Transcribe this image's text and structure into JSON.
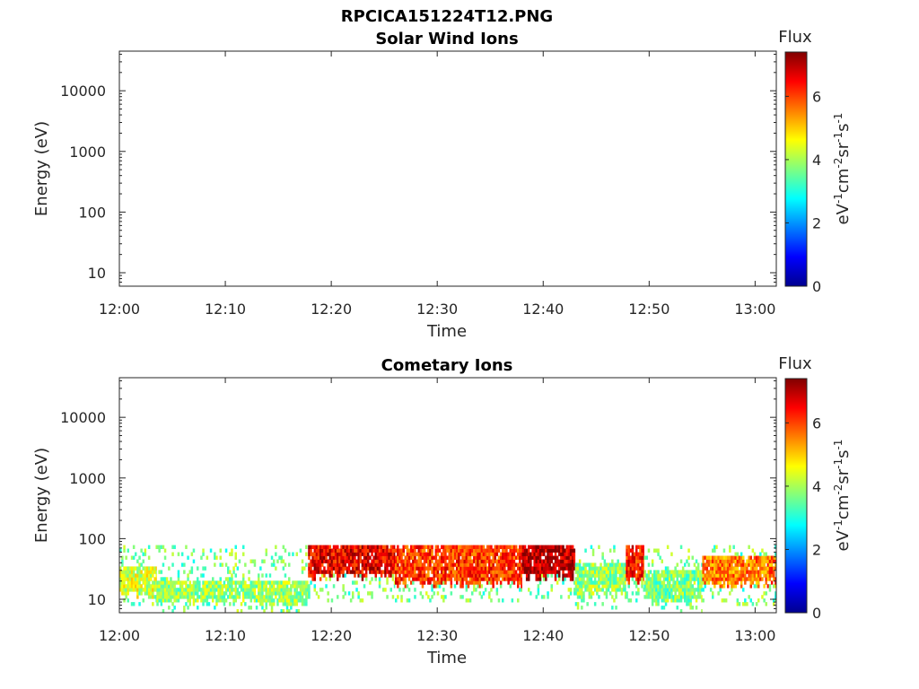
{
  "figure": {
    "title": "RPCICA151224T12.PNG"
  },
  "chart_data": [
    {
      "type": "heatmap",
      "title": "Solar Wind Ions",
      "xlabel": "Time",
      "ylabel": "Energy (eV)",
      "x_ticks": [
        "12:00",
        "12:10",
        "12:20",
        "12:30",
        "12:40",
        "12:50",
        "13:00"
      ],
      "x_range_minutes": [
        0,
        62
      ],
      "y_scale": "log",
      "y_ticks": [
        "10",
        "100",
        "1000",
        "10000"
      ],
      "y_range": [
        6,
        45000
      ],
      "colorbar": {
        "title": "Flux",
        "label": "eV-1cm-2sr-1s-1",
        "ticks": [
          "0",
          "2",
          "4",
          "6"
        ],
        "range": [
          0,
          7.4
        ],
        "colormap": "jet"
      },
      "blocks": []
    },
    {
      "type": "heatmap",
      "title": "Cometary Ions",
      "xlabel": "Time",
      "ylabel": "Energy (eV)",
      "x_ticks": [
        "12:00",
        "12:10",
        "12:20",
        "12:30",
        "12:40",
        "12:50",
        "13:00"
      ],
      "x_range_minutes": [
        0,
        62
      ],
      "y_scale": "log",
      "y_ticks": [
        "10",
        "100",
        "1000",
        "10000"
      ],
      "y_range": [
        6,
        45000
      ],
      "colorbar": {
        "title": "Flux",
        "label": "eV-1cm-2sr-1s-1",
        "ticks": [
          "0",
          "2",
          "4",
          "6"
        ],
        "range": [
          0,
          7.4
        ],
        "colormap": "jet"
      },
      "blocks": [
        {
          "t0": 0.0,
          "t1": 3.5,
          "emin": 8,
          "ebot": 12,
          "etop": 35,
          "emax": 80,
          "flux": 4.3
        },
        {
          "t0": 3.5,
          "t1": 17.8,
          "emin": 6,
          "ebot": 9,
          "etop": 20,
          "emax": 80,
          "flux": 3.9
        },
        {
          "t0": 17.8,
          "t1": 26.0,
          "emin": 9,
          "ebot": 25,
          "etop": 80,
          "emax": 80,
          "flux": 6.6
        },
        {
          "t0": 26.0,
          "t1": 38.0,
          "emin": 9,
          "ebot": 18,
          "etop": 80,
          "emax": 80,
          "flux": 6.1
        },
        {
          "t0": 38.0,
          "t1": 43.0,
          "emin": 10,
          "ebot": 25,
          "etop": 80,
          "emax": 80,
          "flux": 7.0
        },
        {
          "t0": 43.0,
          "t1": 47.8,
          "emin": 7,
          "ebot": 12,
          "etop": 40,
          "emax": 80,
          "flux": 3.9
        },
        {
          "t0": 47.8,
          "t1": 49.5,
          "emin": 9,
          "ebot": 20,
          "etop": 80,
          "emax": 80,
          "flux": 6.3
        },
        {
          "t0": 49.5,
          "t1": 55.0,
          "emin": 6,
          "ebot": 9,
          "etop": 30,
          "emax": 80,
          "flux": 3.7
        },
        {
          "t0": 55.0,
          "t1": 62.0,
          "emin": 8,
          "ebot": 18,
          "etop": 50,
          "emax": 80,
          "flux": 5.6
        }
      ]
    }
  ]
}
